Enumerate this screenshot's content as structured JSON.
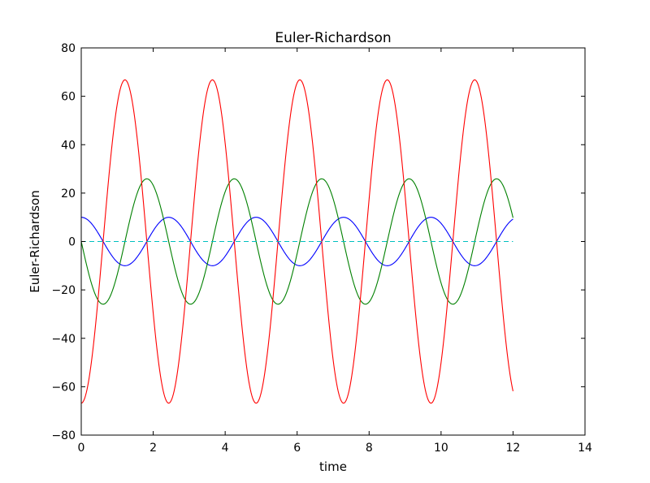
{
  "chart_data": {
    "type": "line",
    "title": "Euler-Richardson",
    "xlabel": "time",
    "ylabel": "Euler-Richardson",
    "xlim": [
      0,
      14
    ],
    "ylim": [
      -80,
      80
    ],
    "xticks": [
      0,
      2,
      4,
      6,
      8,
      10,
      12,
      14
    ],
    "yticks": [
      -80,
      -60,
      -40,
      -20,
      0,
      20,
      40,
      60,
      80
    ],
    "xticklabels": [
      "0",
      "2",
      "4",
      "6",
      "8",
      "10",
      "12",
      "14"
    ],
    "yticklabels": [
      "−80",
      "−60",
      "−40",
      "−20",
      "0",
      "20",
      "40",
      "60",
      "80"
    ],
    "grid": false,
    "legend": "none",
    "x_range": [
      0,
      12
    ],
    "series": [
      {
        "color": "#0000ff",
        "style": "solid",
        "shape": "cosine",
        "amplitude": 10,
        "period": 2.43,
        "phase_at_zero": 0
      },
      {
        "color": "#008000",
        "style": "solid",
        "shape": "negative-sine",
        "amplitude": 25.9,
        "period": 2.43,
        "phase_at_zero": 0
      },
      {
        "color": "#ff0000",
        "style": "solid",
        "shape": "negative-cosine",
        "amplitude": 66.8,
        "period": 2.43,
        "phase_at_zero": 0
      },
      {
        "color": "#00bfbf",
        "style": "dashed",
        "shape": "constant",
        "value": 0
      }
    ]
  }
}
